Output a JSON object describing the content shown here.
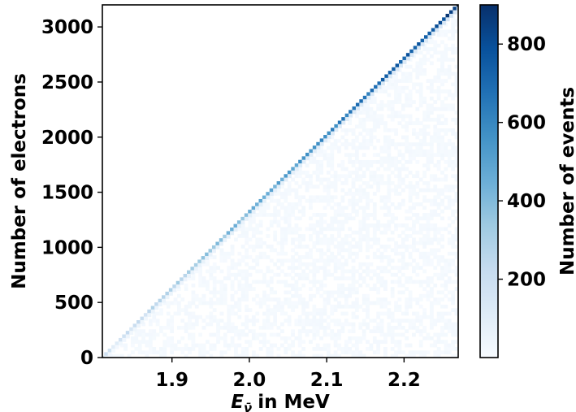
{
  "chart_data": {
    "type": "heatmap",
    "xlabel": "in MeV",
    "xlabel_symbol": "E",
    "xlabel_subscript": "ν̄",
    "ylabel": "Number of electrons",
    "xlim": [
      1.81,
      2.27
    ],
    "ylim": [
      0,
      3200
    ],
    "x_ticks": [
      1.9,
      2.0,
      2.1,
      2.2
    ],
    "x_tick_labels": [
      "1.9",
      "2.0",
      "2.1",
      "2.2"
    ],
    "y_ticks": [
      0,
      500,
      1000,
      1500,
      2000,
      2500,
      3000
    ],
    "y_tick_labels": [
      "0",
      "500",
      "1000",
      "1500",
      "2000",
      "2500",
      "3000"
    ],
    "colorbar": {
      "label": "Number of events",
      "range": [
        0,
        900
      ],
      "ticks": [
        200,
        400,
        600,
        800
      ],
      "tick_labels": [
        "200",
        "400",
        "600",
        "800"
      ],
      "colormap": [
        "#f7fbff",
        "#deebf7",
        "#c6dbef",
        "#9ecae1",
        "#6baed6",
        "#4292c6",
        "#2171b5",
        "#08519c",
        "#08306b"
      ]
    },
    "diagonal": {
      "x_start": 1.81,
      "y_start": 0,
      "x_end": 2.27,
      "y_end": 3200,
      "count_start": 120,
      "count_end": 850
    },
    "n_bins_x": 100,
    "n_bins_y": 100,
    "grid": false
  }
}
